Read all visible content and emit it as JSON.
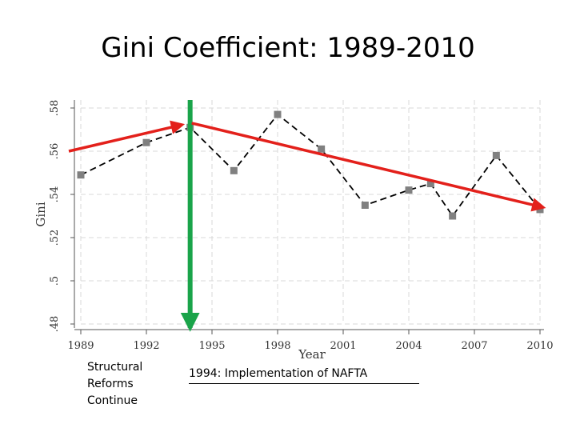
{
  "slide": {
    "title": "Gini Coefficient: 1989-2010",
    "note_left": [
      "Structural",
      "Reforms",
      "Continue"
    ],
    "note_right": "1994: Implementation of NAFTA"
  },
  "chart_data": {
    "type": "line",
    "title": "",
    "xlabel": "Year",
    "ylabel": "Gini",
    "x": [
      1989,
      1992,
      1994,
      1996,
      1998,
      2000,
      2002,
      2004,
      2005,
      2006,
      2008,
      2010
    ],
    "series": [
      {
        "values": [
          0.549,
          0.564,
          0.571,
          0.551,
          0.577,
          0.561,
          0.535,
          0.542,
          0.545,
          0.53,
          0.558,
          0.533
        ]
      }
    ],
    "xticks": [
      "1989",
      "1992",
      "1995",
      "1998",
      "2001",
      "2004",
      "2007",
      "2010"
    ],
    "yticks": [
      ".48",
      ".5",
      ".52",
      ".54",
      ".56",
      ".58"
    ],
    "xlim": [
      1989,
      2010
    ],
    "ylim": [
      0.48,
      0.58
    ],
    "grid": true,
    "style": {
      "line_color": "#000000",
      "marker_color": "#808080",
      "grid_color": "#d9d9d9"
    },
    "annotations": {
      "nafta_year": 1994,
      "nafta_line_color": "#1aa44a",
      "trend_arrow_color": "#e3201b",
      "trend_up": {
        "from": [
          1989,
          0.56
        ],
        "to": [
          1994,
          0.573
        ]
      },
      "trend_down": {
        "from": [
          1994,
          0.573
        ],
        "to": [
          2010,
          0.534
        ]
      }
    }
  }
}
